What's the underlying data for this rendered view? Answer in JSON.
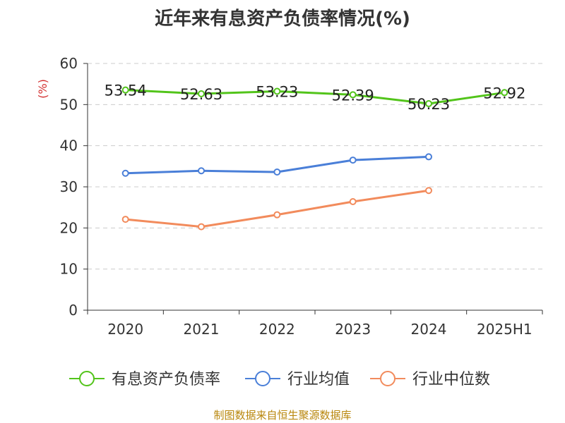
{
  "chart_data": {
    "type": "line",
    "title": "近年来有息资产负债率情况(%)",
    "ylabel": "(%)",
    "xlabel": "",
    "ylim": [
      0,
      60
    ],
    "yticks": [
      0,
      10,
      20,
      30,
      40,
      50,
      60
    ],
    "categories": [
      "2020",
      "2021",
      "2022",
      "2023",
      "2024",
      "2025H1"
    ],
    "grid": true,
    "legend_position": "bottom",
    "series": [
      {
        "name": "有息资产负债率",
        "color": "#52c41a",
        "values": [
          53.54,
          52.63,
          53.23,
          52.39,
          50.23,
          52.92
        ],
        "show_labels": true
      },
      {
        "name": "行业均值",
        "color": "#4a7fd8",
        "values": [
          33.3,
          33.9,
          33.6,
          36.5,
          37.3,
          null
        ],
        "show_labels": false
      },
      {
        "name": "行业中位数",
        "color": "#f28b5c",
        "values": [
          22.1,
          20.3,
          23.2,
          26.4,
          29.1,
          null
        ],
        "show_labels": false
      }
    ]
  },
  "source": "制图数据来自恒生聚源数据库"
}
